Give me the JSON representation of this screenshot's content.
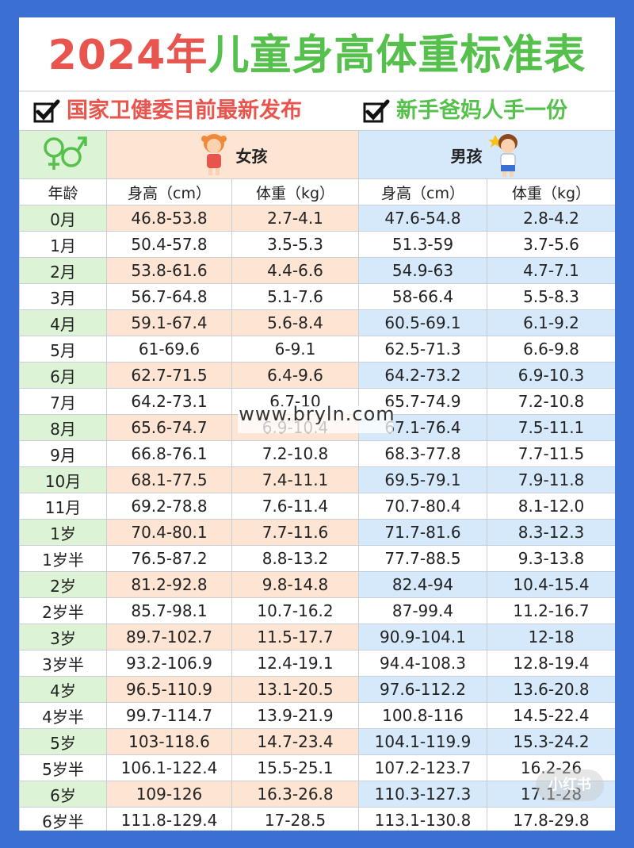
{
  "title": {
    "year": "2024年",
    "rest": "儿童身高体重标准表"
  },
  "subtitles": {
    "left": "国家卫健委目前最新发布",
    "right": "新手爸妈人手一份"
  },
  "icons": {
    "check": "checkmark-icon",
    "gender": "gender-symbols-icon",
    "girl": "girl-illustration",
    "boy": "boy-illustration"
  },
  "colors": {
    "red": "#e8554e",
    "green": "#55c04b",
    "girl_band": "#fde4d3",
    "boy_band": "#d6e9fa",
    "age_band": "#ddf3d6",
    "frame": "#3b6fd1"
  },
  "header": {
    "girl": "女孩",
    "boy": "男孩",
    "age": "年龄",
    "height": "身高（cm）",
    "weight": "体重（kg）"
  },
  "rows": [
    {
      "age": "0月",
      "gh": "46.8-53.8",
      "gw": "2.7-4.1",
      "bh": "47.6-54.8",
      "bw": "2.8-4.2"
    },
    {
      "age": "1月",
      "gh": "50.4-57.8",
      "gw": "3.5-5.3",
      "bh": "51.3-59",
      "bw": "3.7-5.6"
    },
    {
      "age": "2月",
      "gh": "53.8-61.6",
      "gw": "4.4-6.6",
      "bh": "54.9-63",
      "bw": "4.7-7.1"
    },
    {
      "age": "3月",
      "gh": "56.7-64.8",
      "gw": "5.1-7.6",
      "bh": "58-66.4",
      "bw": "5.5-8.3"
    },
    {
      "age": "4月",
      "gh": "59.1-67.4",
      "gw": "5.6-8.4",
      "bh": "60.5-69.1",
      "bw": "6.1-9.2"
    },
    {
      "age": "5月",
      "gh": "61-69.6",
      "gw": "6-9.1",
      "bh": "62.5-71.3",
      "bw": "6.6-9.8"
    },
    {
      "age": "6月",
      "gh": "62.7-71.5",
      "gw": "6.4-9.6",
      "bh": "64.2-73.2",
      "bw": "6.9-10.3"
    },
    {
      "age": "7月",
      "gh": "64.2-73.1",
      "gw": "6.7-10",
      "bh": "65.7-74.9",
      "bw": "7.2-10.8"
    },
    {
      "age": "8月",
      "gh": "65.6-74.7",
      "gw": "6.9-10.4",
      "bh": "67.1-76.4",
      "bw": "7.5-11.1"
    },
    {
      "age": "9月",
      "gh": "66.8-76.1",
      "gw": "7.2-10.8",
      "bh": "68.3-77.8",
      "bw": "7.7-11.5"
    },
    {
      "age": "10月",
      "gh": "68.1-77.5",
      "gw": "7.4-11.1",
      "bh": "69.5-79.1",
      "bw": "7.9-11.8"
    },
    {
      "age": "11月",
      "gh": "69.2-78.8",
      "gw": "7.6-11.4",
      "bh": "70.7-80.4",
      "bw": "8.1-12.0"
    },
    {
      "age": "1岁",
      "gh": "70.4-80.1",
      "gw": "7.7-11.6",
      "bh": "71.7-81.6",
      "bw": "8.3-12.3"
    },
    {
      "age": "1岁半",
      "gh": "76.5-87.2",
      "gw": "8.8-13.2",
      "bh": "77.7-88.5",
      "bw": "9.3-13.8"
    },
    {
      "age": "2岁",
      "gh": "81.2-92.8",
      "gw": "9.8-14.8",
      "bh": "82.4-94",
      "bw": "10.4-15.4"
    },
    {
      "age": "2岁半",
      "gh": "85.7-98.1",
      "gw": "10.7-16.2",
      "bh": "87-99.4",
      "bw": "11.2-16.7"
    },
    {
      "age": "3岁",
      "gh": "89.7-102.7",
      "gw": "11.5-17.7",
      "bh": "90.9-104.1",
      "bw": "12-18"
    },
    {
      "age": "3岁半",
      "gh": "93.2-106.9",
      "gw": "12.4-19.1",
      "bh": "94.4-108.3",
      "bw": "12.8-19.4"
    },
    {
      "age": "4岁",
      "gh": "96.5-110.9",
      "gw": "13.1-20.5",
      "bh": "97.6-112.2",
      "bw": "13.6-20.8"
    },
    {
      "age": "4岁半",
      "gh": "99.7-114.7",
      "gw": "13.9-21.9",
      "bh": "100.8-116",
      "bw": "14.5-22.4"
    },
    {
      "age": "5岁",
      "gh": "103-118.6",
      "gw": "14.7-23.4",
      "bh": "104.1-119.9",
      "bw": "15.3-24.2"
    },
    {
      "age": "5岁半",
      "gh": "106.1-122.4",
      "gw": "15.5-25.1",
      "bh": "107.2-123.7",
      "bw": "16.2-26"
    },
    {
      "age": "6岁",
      "gh": "109-126",
      "gw": "16.3-26.8",
      "bh": "110.3-127.3",
      "bw": "17.1-28"
    },
    {
      "age": "6岁半",
      "gh": "111.8-129.4",
      "gw": "17-28.5",
      "bh": "113.1-130.8",
      "bw": "17.8-29.8"
    }
  ],
  "watermark": "www.bryln.com",
  "badge": "小红书"
}
